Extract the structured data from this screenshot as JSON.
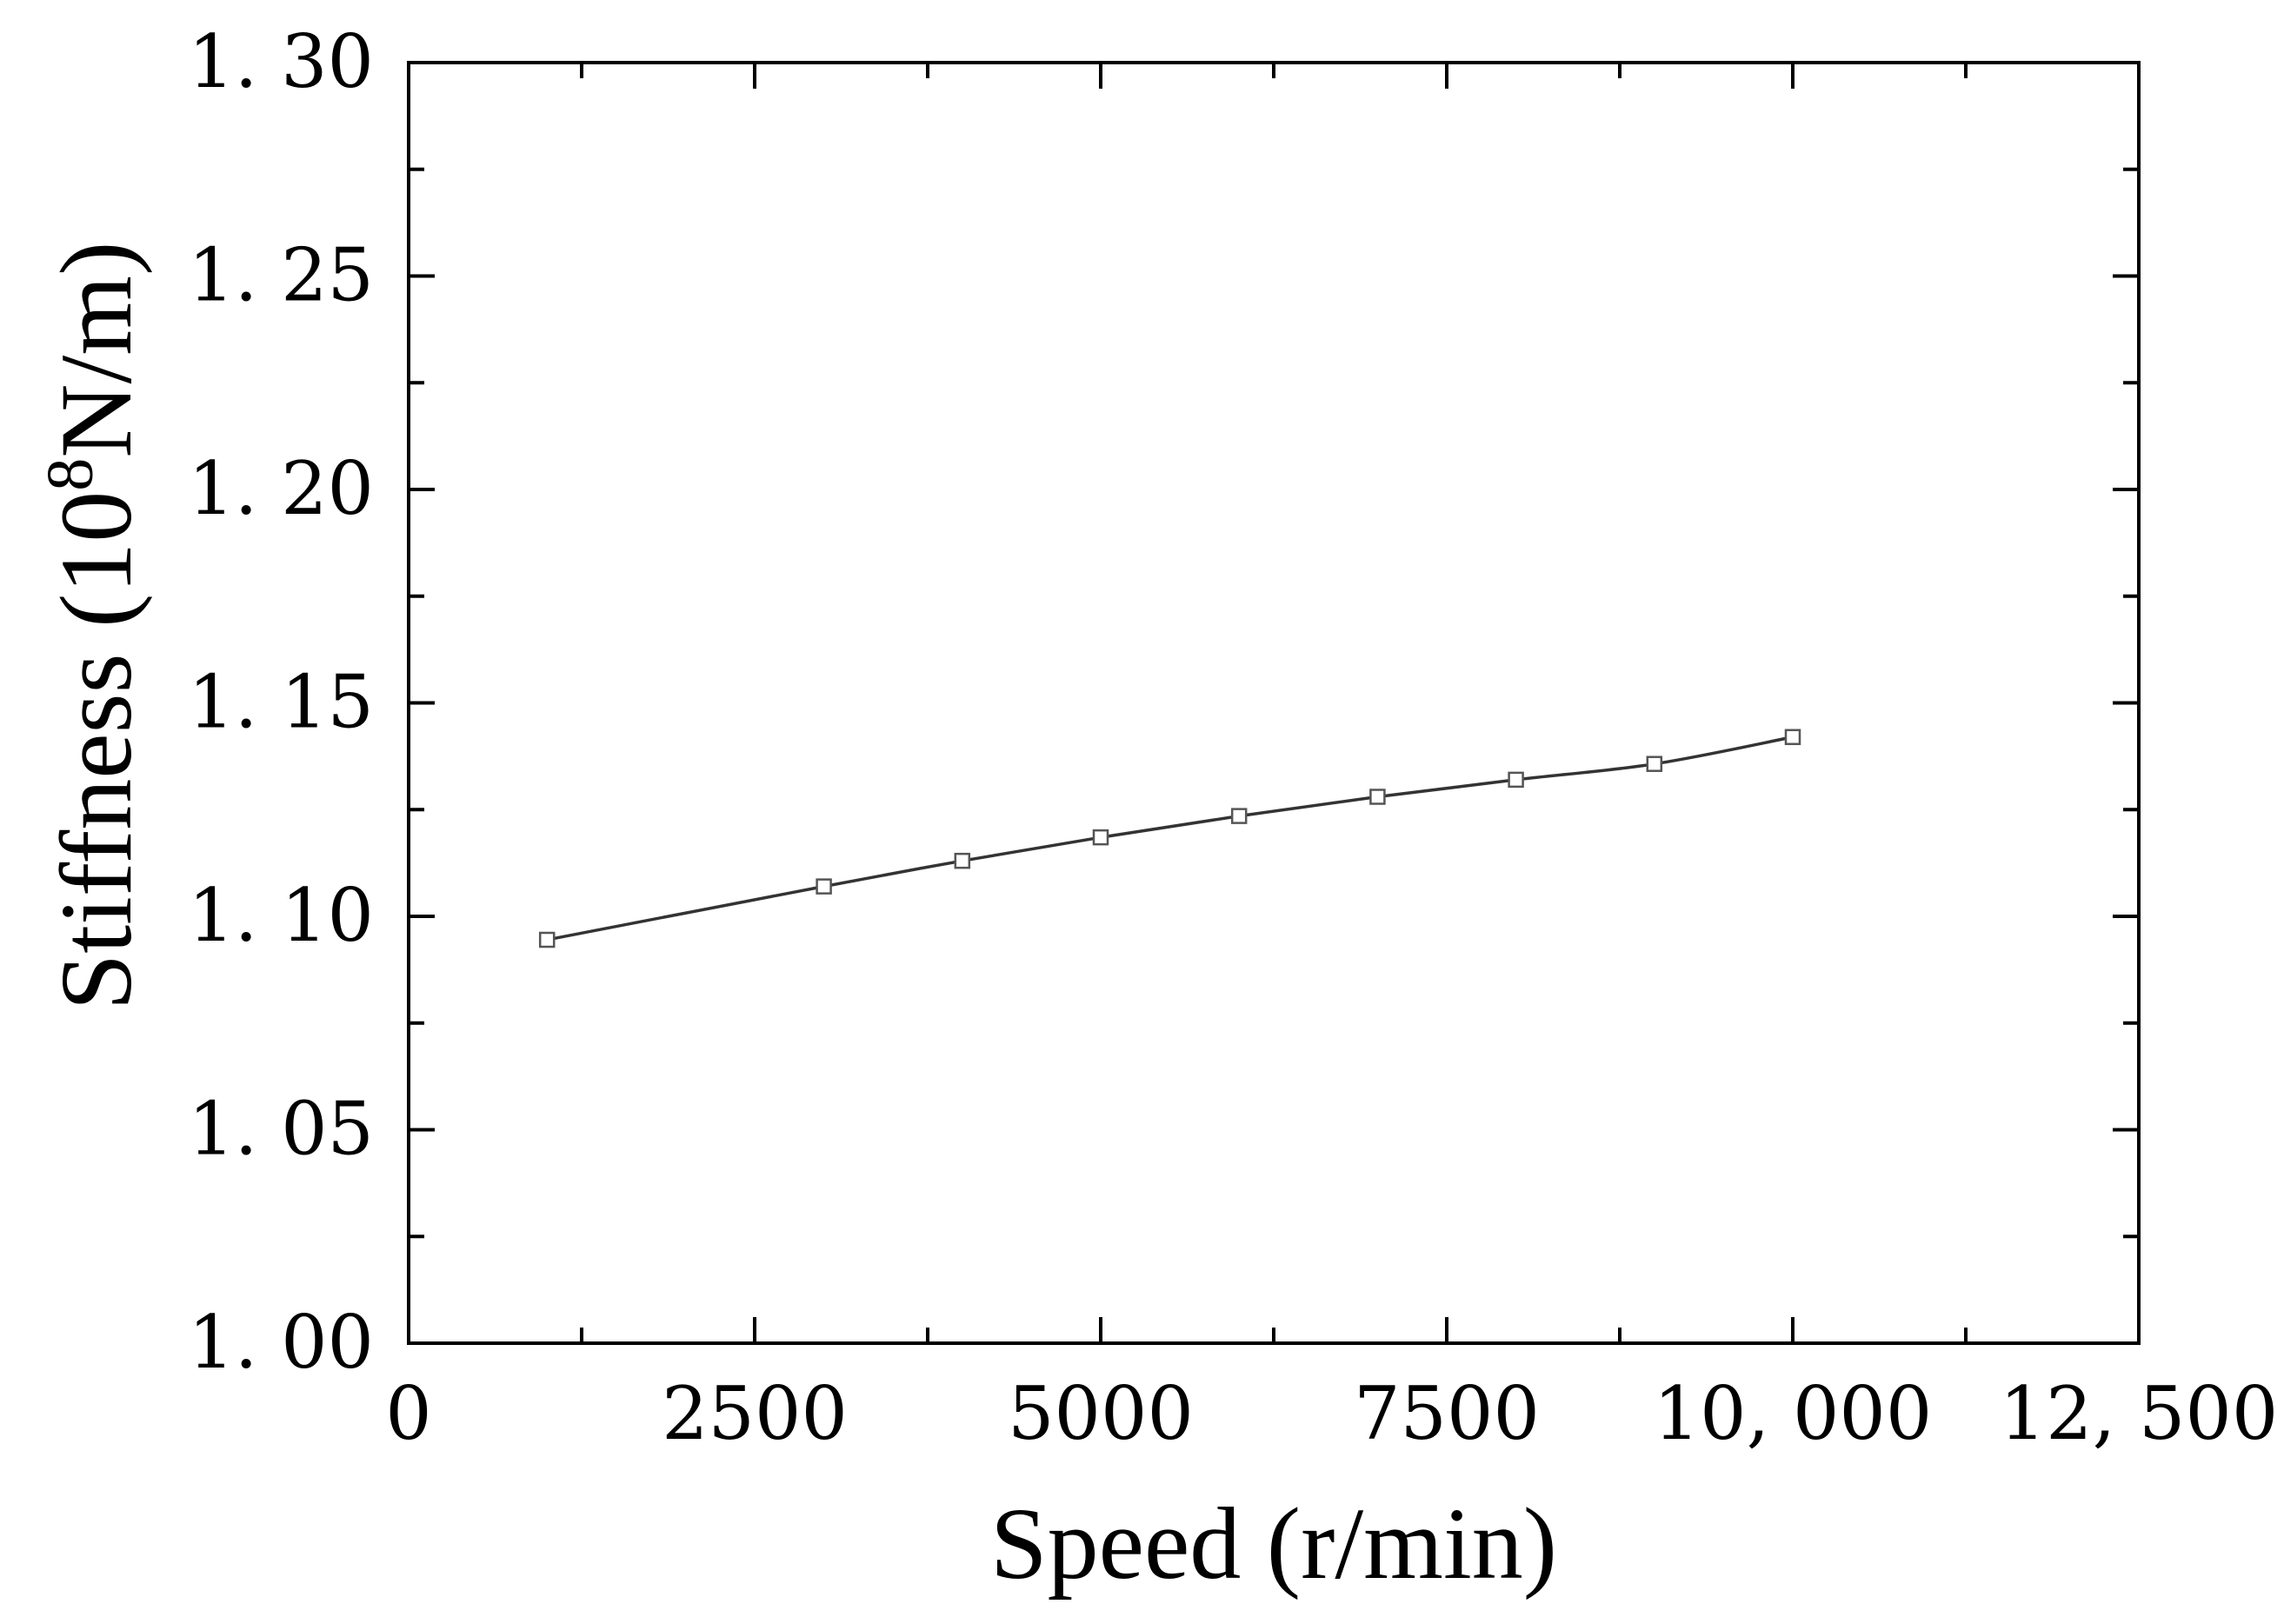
{
  "chart_data": {
    "type": "line",
    "title": "",
    "xlabel": "Speed (r/min)",
    "ylabel": {
      "prefix": "Stiffness (10",
      "superscript": "8",
      "suffix": "N/m)"
    },
    "xlim": [
      0,
      12500
    ],
    "ylim": [
      1.0,
      1.3
    ],
    "x_ticks": [
      0,
      2500,
      5000,
      7500,
      10000,
      12500
    ],
    "x_tick_labels": [
      "0",
      "2500",
      "5000",
      "7500",
      "10, 000",
      "12, 500"
    ],
    "y_ticks": [
      1.0,
      1.05,
      1.1,
      1.15,
      1.2,
      1.25,
      1.3
    ],
    "y_tick_labels": [
      "1. 00",
      "1. 05",
      "1. 10",
      "1. 15",
      "1. 20",
      "1. 25",
      "1. 30"
    ],
    "grid": false,
    "legend": "none",
    "series": [
      {
        "x": [
          1000,
          3000,
          4000,
          5000,
          6000,
          7000,
          8000,
          9000,
          10000
        ],
        "y": [
          1.0945,
          1.107,
          1.113,
          1.1185,
          1.1235,
          1.128,
          1.132,
          1.1357,
          1.142
        ],
        "line_color": "#333333",
        "marker": "square-open"
      }
    ],
    "x_position_note_skip": true
  }
}
